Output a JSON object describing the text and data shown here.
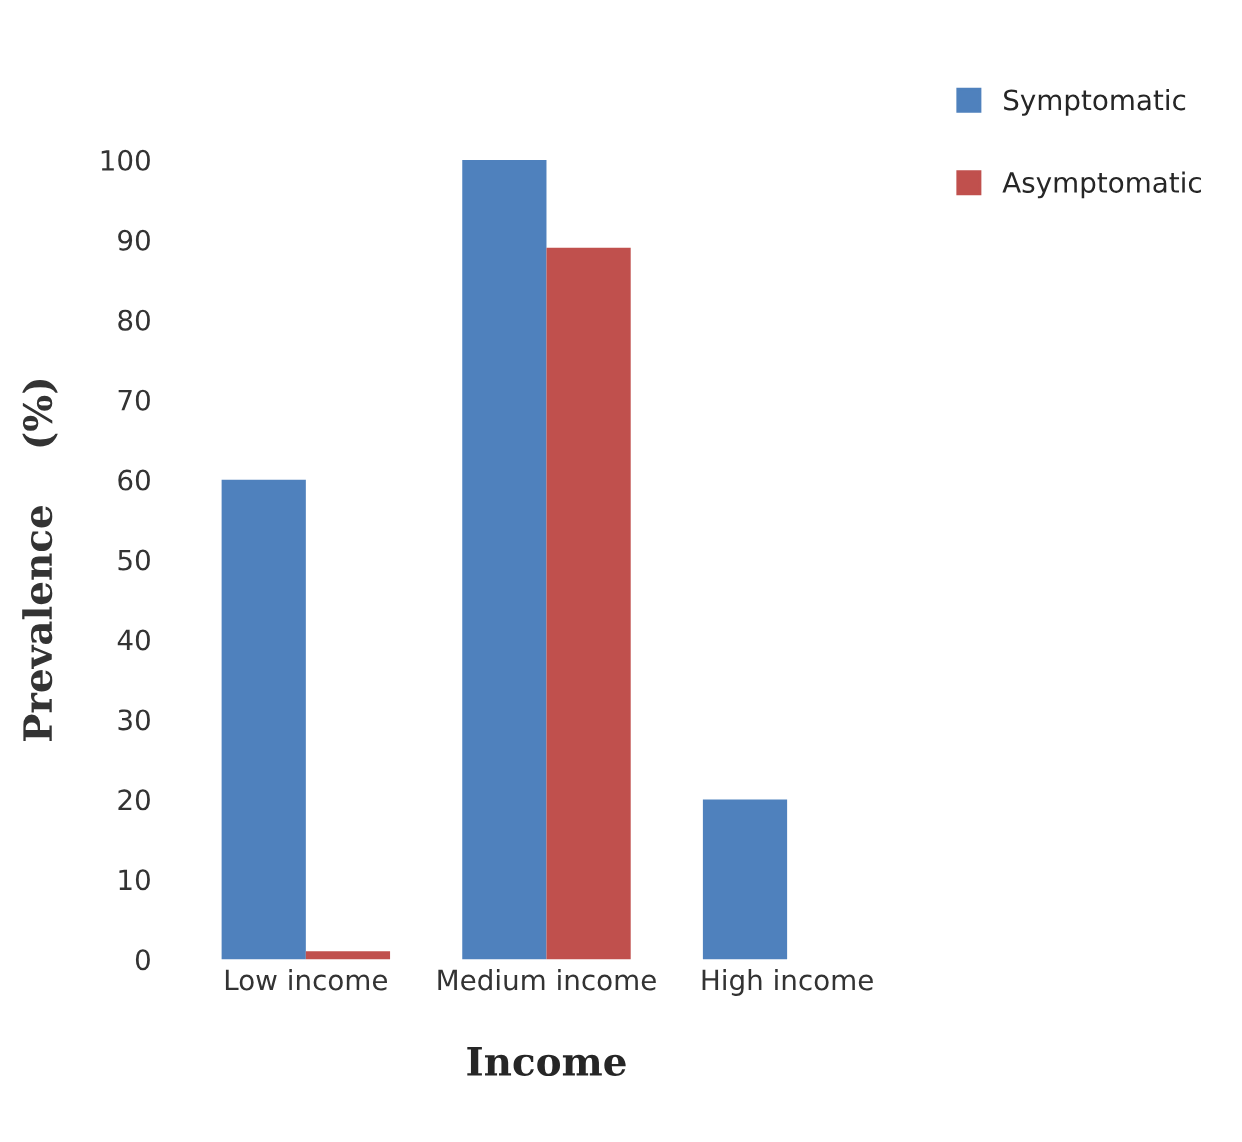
{
  "chart_data": {
    "type": "bar",
    "xlabel": "Income",
    "ylabel": "Prevalence    (%)",
    "categories": [
      "Low income",
      "Medium income",
      "High income"
    ],
    "series": [
      {
        "name": "Symptomatic",
        "color": "#4f81bd",
        "values": [
          60,
          100,
          20
        ]
      },
      {
        "name": "Asymptomatic",
        "color": "#c0504d",
        "values": [
          1,
          89,
          0
        ]
      }
    ],
    "ylim": [
      0,
      100
    ],
    "yticks": [
      0,
      10,
      20,
      30,
      40,
      50,
      60,
      70,
      80,
      90,
      100
    ],
    "grid": false,
    "legend": "top right"
  }
}
